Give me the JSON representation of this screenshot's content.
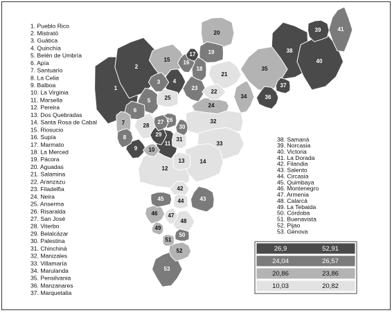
{
  "municipalities": [
    {
      "label": "1. Pueblo Rico",
      "map_label": "1",
      "class": 0
    },
    {
      "label": "2. Mistrató",
      "map_label": "2",
      "class": 0
    },
    {
      "label": "3. Guática",
      "map_label": "3",
      "class": 1
    },
    {
      "label": "4. Quinchía",
      "map_label": "4",
      "class": 0
    },
    {
      "label": "5. Belén de Umbría",
      "map_label": "5",
      "class": 1
    },
    {
      "label": "6. Apía",
      "map_label": "6",
      "class": 1
    },
    {
      "label": "7. Santuario",
      "map_label": "7",
      "class": 2
    },
    {
      "label": "8. La Celia",
      "map_label": "8",
      "class": 1
    },
    {
      "label": "9. Balboa",
      "map_label": "9",
      "class": 0
    },
    {
      "label": "10. La Virginia",
      "map_label": "10",
      "class": 2
    },
    {
      "label": "11. Marsella",
      "map_label": "11",
      "class": 0
    },
    {
      "label": "12. Pereira",
      "map_label": "12",
      "class": 3
    },
    {
      "label": "13. Dos Quebradas",
      "map_label": "13",
      "class": 3
    },
    {
      "label": "14. Santa Rosa de Cabal",
      "map_label": "14",
      "class": 3
    },
    {
      "label": "15. Riosucio",
      "map_label": "15",
      "class": 2
    },
    {
      "label": "16. Supía",
      "map_label": "16",
      "class": 1
    },
    {
      "label": "17. Marmato",
      "map_label": "17",
      "class": 0
    },
    {
      "label": "18. La Merced",
      "map_label": "18",
      "class": 1
    },
    {
      "label": "19. Pácora",
      "map_label": "19",
      "class": 1
    },
    {
      "label": "20. Aguadas",
      "map_label": "20",
      "class": 2
    },
    {
      "label": "21. Salamina",
      "map_label": "21",
      "class": 3
    },
    {
      "label": "22. Aranzazu",
      "map_label": "22",
      "class": 3
    },
    {
      "label": "23. Filadelfia",
      "map_label": "23",
      "class": 1
    },
    {
      "label": "24. Neira",
      "map_label": "24",
      "class": 2
    },
    {
      "label": "25. Anserma",
      "map_label": "25",
      "class": 3
    },
    {
      "label": "26. Risaralda",
      "map_label": "26",
      "class": 1
    },
    {
      "label": "27. San José",
      "map_label": "27",
      "class": 1
    },
    {
      "label": "28. Viterbo",
      "map_label": "28",
      "class": 3
    },
    {
      "label": "29. Belalcázar",
      "map_label": "29",
      "class": 0
    },
    {
      "label": "30. Palestina",
      "map_label": "30",
      "class": 1
    },
    {
      "label": "31. Chinchiná",
      "map_label": "31",
      "class": 3
    },
    {
      "label": "32. Manizales",
      "map_label": "32",
      "class": 3
    },
    {
      "label": "33. Villamaría",
      "map_label": "33",
      "class": 3
    },
    {
      "label": "34. Marulanda",
      "map_label": "34",
      "class": 2
    },
    {
      "label": "35. Pensilvania",
      "map_label": "35",
      "class": 2
    },
    {
      "label": "36. Manzanares",
      "map_label": "36",
      "class": 0
    },
    {
      "label": "37. Marquetalia",
      "map_label": "37",
      "class": 0
    },
    {
      "label": "38. Samaná",
      "map_label": "38",
      "class": 0
    },
    {
      "label": "39. Norcasia",
      "map_label": "39",
      "class": 0
    },
    {
      "label": "40. Victoria",
      "map_label": "40",
      "class": 0
    },
    {
      "label": "41. La Dorada",
      "map_label": "41",
      "class": 1
    },
    {
      "label": "42. Filandia",
      "map_label": "42",
      "class": 3
    },
    {
      "label": "43. Salento",
      "map_label": "43",
      "class": 1
    },
    {
      "label": "44. Circasia",
      "map_label": "44",
      "class": 3
    },
    {
      "label": "45. Quimbaya",
      "map_label": "45",
      "class": 1
    },
    {
      "label": "46. Montenegro",
      "map_label": "46",
      "class": 2
    },
    {
      "label": "47. Armenia",
      "map_label": "47",
      "class": 3
    },
    {
      "label": "48. Calarcá",
      "map_label": "48",
      "class": 3
    },
    {
      "label": "49. La Tebaida",
      "map_label": "49",
      "class": 2
    },
    {
      "label": "50. Córdoba",
      "map_label": "50",
      "class": 1
    },
    {
      "label": "51. Buenavista",
      "map_label": "51",
      "class": 2
    },
    {
      "label": "52. Pijao",
      "map_label": "52",
      "class": 2
    },
    {
      "label": "53. Génova",
      "map_label": "53",
      "class": 1
    }
  ],
  "legend": {
    "classes": [
      {
        "from": "26,9",
        "to": "52,91",
        "color": "#4a4a4a"
      },
      {
        "from": "24,04",
        "to": "26,57",
        "color": "#7b7b7b"
      },
      {
        "from": "20,86",
        "to": "23,86",
        "color": "#b3b3b3"
      },
      {
        "from": "10,03",
        "to": "20,82",
        "color": "#e2e2e2"
      }
    ]
  }
}
